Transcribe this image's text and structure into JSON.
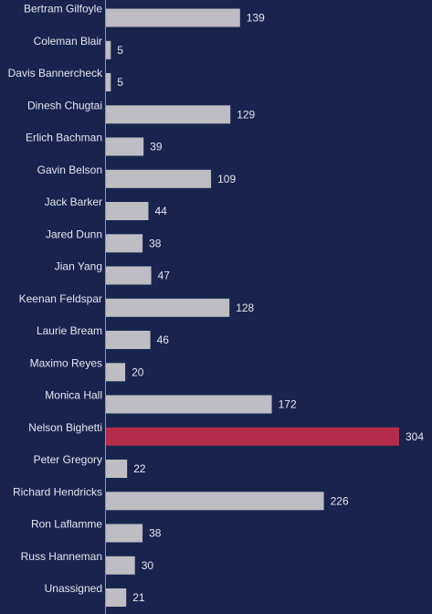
{
  "chart_data": {
    "type": "bar",
    "orientation": "horizontal",
    "categories": [
      "Bertram Gilfoyle",
      "Coleman Blair",
      "Davis Bannercheck",
      "Dinesh Chugtai",
      "Erlich Bachman",
      "Gavin Belson",
      "Jack Barker",
      "Jared Dunn",
      "Jian Yang",
      "Keenan Feldspar",
      "Laurie Bream",
      "Maximo Reyes",
      "Monica Hall",
      "Nelson Bighetti",
      "Peter Gregory",
      "Richard Hendricks",
      "Ron Laflamme",
      "Russ Hanneman",
      "Unassigned"
    ],
    "values": [
      139,
      5,
      5,
      129,
      39,
      109,
      44,
      38,
      47,
      128,
      46,
      20,
      172,
      304,
      22,
      226,
      38,
      30,
      21
    ],
    "highlight_category": "Nelson Bighetti",
    "title": "",
    "xlabel": "",
    "ylabel": "",
    "xlim": [
      0,
      304
    ],
    "grid": false,
    "legend": "none",
    "data_labels": true,
    "colors": {
      "background": "#18244e",
      "bar": "#bdbdc3",
      "highlight": "#b32c4a",
      "text": "#e3e6ee",
      "axis": "#8a93ad"
    }
  }
}
